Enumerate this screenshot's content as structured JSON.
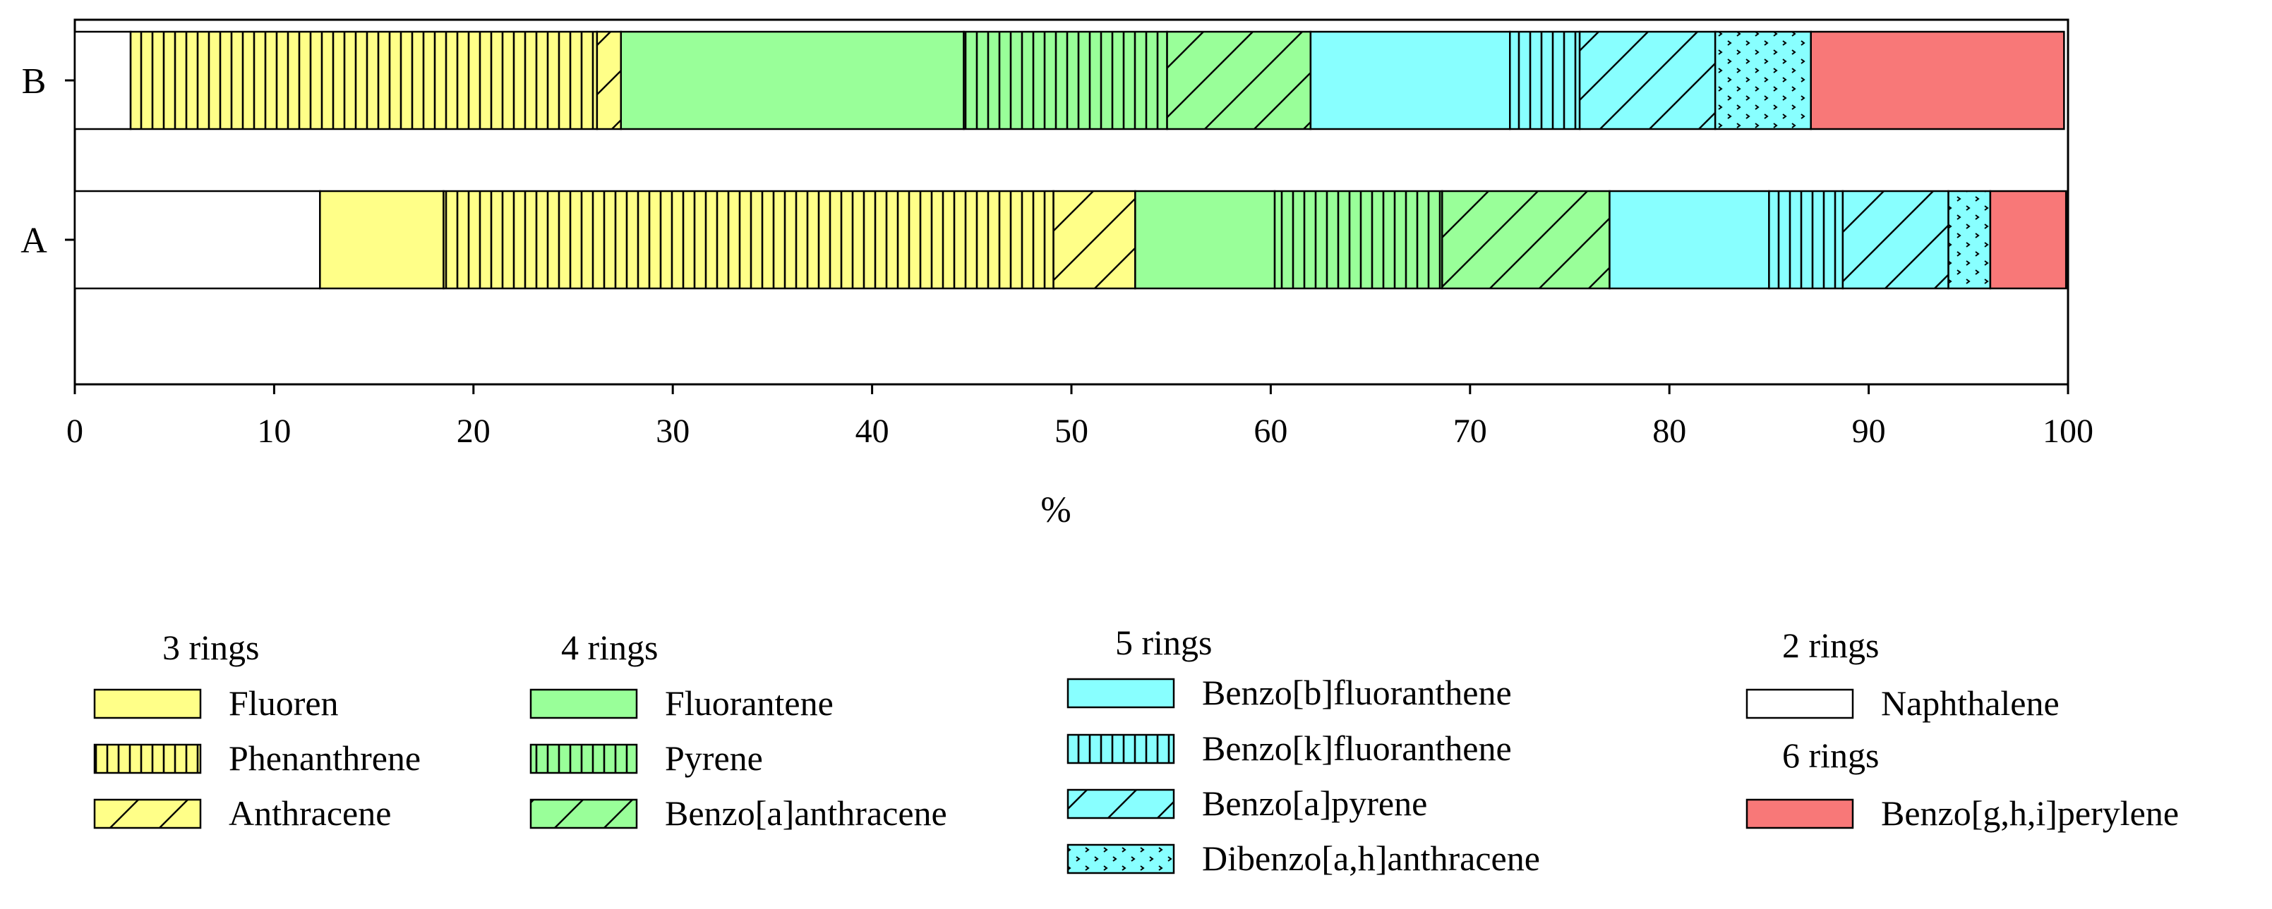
{
  "chart_data": {
    "type": "bar",
    "orientation": "horizontal",
    "stacked": true,
    "title": "",
    "xlabel": "%",
    "ylabel": "",
    "xlim": [
      0,
      100
    ],
    "xticks": [
      0,
      10,
      20,
      30,
      40,
      50,
      60,
      70,
      80,
      90,
      100
    ],
    "categories": [
      "B",
      "A"
    ],
    "grid": false,
    "legend_position": "bottom",
    "series": [
      {
        "name": "Naphthalene",
        "group": "2 rings",
        "color": "#ffffff",
        "pattern": "none",
        "values": [
          2.8,
          12.3
        ]
      },
      {
        "name": "Fluoren",
        "group": "3 rings",
        "color": "#ffff88",
        "pattern": "none",
        "values": [
          0,
          6.2
        ]
      },
      {
        "name": "Phenanthrene",
        "group": "3 rings",
        "color": "#ffff88",
        "pattern": "vertical",
        "values": [
          23.4,
          30.6
        ]
      },
      {
        "name": "Anthracene",
        "group": "3 rings",
        "color": "#ffff88",
        "pattern": "diagonal",
        "values": [
          1.2,
          4.1
        ]
      },
      {
        "name": "Fluorantene",
        "group": "4 rings",
        "color": "#99ff99",
        "pattern": "none",
        "values": [
          17.2,
          7.0
        ]
      },
      {
        "name": "Pyrene",
        "group": "4 rings",
        "color": "#99ff99",
        "pattern": "vertical",
        "values": [
          10.2,
          8.4
        ]
      },
      {
        "name": "Benzo[a]anthracene",
        "group": "4 rings",
        "color": "#99ff99",
        "pattern": "diagonal",
        "values": [
          7.2,
          8.4
        ]
      },
      {
        "name": "Benzo[b]fluoranthene",
        "group": "5 rings",
        "color": "#88ffff",
        "pattern": "none",
        "values": [
          10.0,
          8.0
        ]
      },
      {
        "name": "Benzo[k]fluoranthene",
        "group": "5 rings",
        "color": "#88ffff",
        "pattern": "vertical",
        "values": [
          3.5,
          3.7
        ]
      },
      {
        "name": "Benzo[a]pyrene",
        "group": "5 rings",
        "color": "#88ffff",
        "pattern": "diagonal",
        "values": [
          6.8,
          5.3
        ]
      },
      {
        "name": "Dibenzo[a,h]anthracene",
        "group": "5 rings",
        "color": "#88ffff",
        "pattern": "dots",
        "values": [
          4.8,
          2.1
        ]
      },
      {
        "name": "Benzo[g,h,i]perylene",
        "group": "6 rings",
        "color": "#f87878",
        "pattern": "none",
        "values": [
          12.7,
          3.8
        ]
      }
    ],
    "legend": {
      "columns": [
        {
          "title": "3 rings",
          "items": [
            "Fluoren",
            "Phenanthrene",
            "Anthracene"
          ]
        },
        {
          "title": "4 rings",
          "items": [
            "Fluorantene",
            "Pyrene",
            "Benzo[a]anthracene"
          ]
        },
        {
          "title": "5 rings",
          "items": [
            "Benzo[b]fluoranthene",
            "Benzo[k]fluoranthene",
            "Benzo[a]pyrene",
            "Dibenzo[a,h]anthracene"
          ]
        },
        {
          "title": "2 rings",
          "items": [
            "Naphthalene"
          ]
        },
        {
          "title": "6 rings",
          "items": [
            "Benzo[g,h,i]perylene"
          ]
        }
      ]
    }
  }
}
